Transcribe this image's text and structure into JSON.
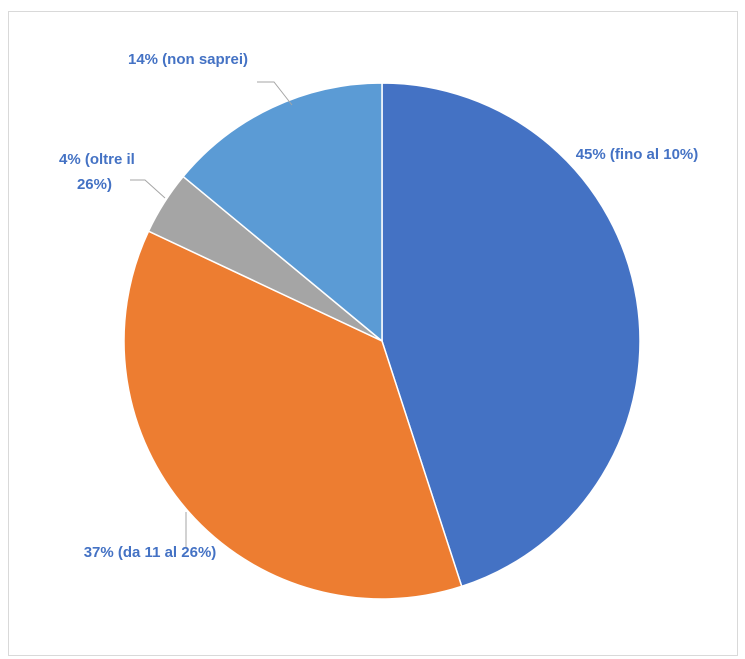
{
  "chart_data": {
    "type": "pie",
    "categories": [
      "fino al 10%",
      "da 11 al 26%",
      "oltre il 26%",
      "non saprei"
    ],
    "values": [
      45,
      37,
      4,
      14
    ],
    "colors": [
      "#4472C4",
      "#ED7D31",
      "#A5A5A5",
      "#5B9BD5"
    ],
    "label_color": "#4472C4",
    "data_labels": [
      [
        "45% (fino al 10%)"
      ],
      [
        "37% (da 11 al 26%)"
      ],
      [
        "4% (oltre il",
        "26%)"
      ],
      [
        "14% (non saprei)"
      ]
    ],
    "start_angle": "12 o'clock",
    "direction": "clockwise",
    "legend": "none"
  }
}
